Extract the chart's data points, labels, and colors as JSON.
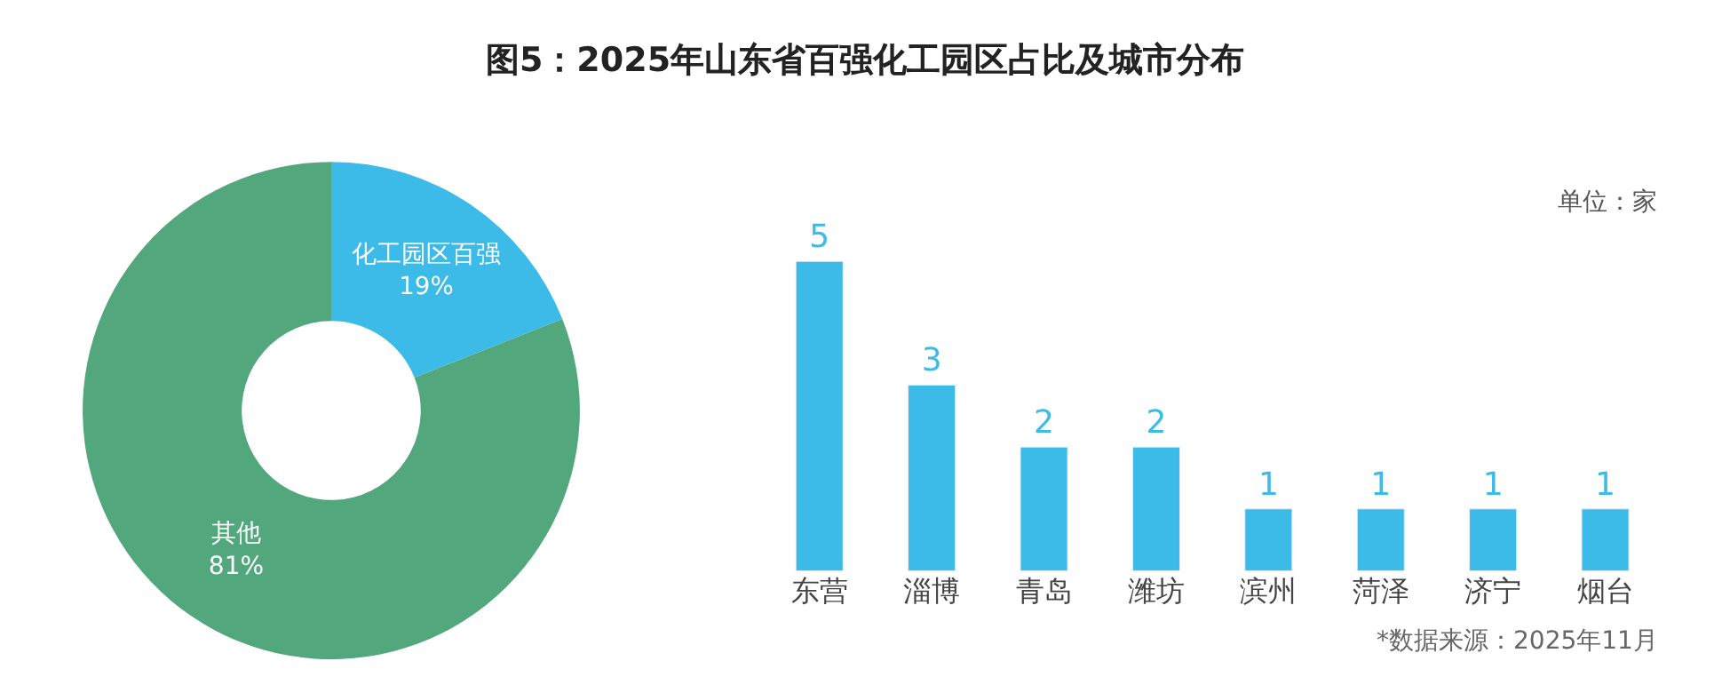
{
  "chart_data": [
    {
      "type": "donut",
      "title": "图5：2025年山东省百强化工园区占比及城市分布",
      "categories": [
        "化工园区百强",
        "其他"
      ],
      "values": [
        19,
        81
      ],
      "value_labels": [
        "19%",
        "81%"
      ],
      "colors": [
        "#3dbbe8",
        "#52a87c"
      ]
    },
    {
      "type": "bar",
      "categories": [
        "东营",
        "淄博",
        "青岛",
        "潍坊",
        "滨州",
        "菏泽",
        "济宁",
        "烟台"
      ],
      "values": [
        5,
        3,
        2,
        2,
        1,
        1,
        1,
        1
      ],
      "color": "#3dbbe8",
      "data_labels": true,
      "annotations": [
        "单位：家",
        "*数据来源：2025年11月"
      ]
    }
  ]
}
